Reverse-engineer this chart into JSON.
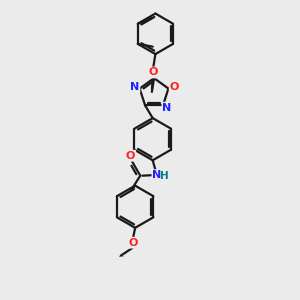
{
  "bg_color": "#ebebeb",
  "bond_color": "#1a1a1a",
  "bond_width": 1.6,
  "N_color": "#2020ff",
  "O_color": "#ff2020",
  "teal_color": "#008080",
  "figsize": [
    3.0,
    3.0
  ],
  "dpi": 100,
  "xlim": [
    -1.5,
    5.5
  ],
  "ylim": [
    -0.5,
    10.5
  ]
}
